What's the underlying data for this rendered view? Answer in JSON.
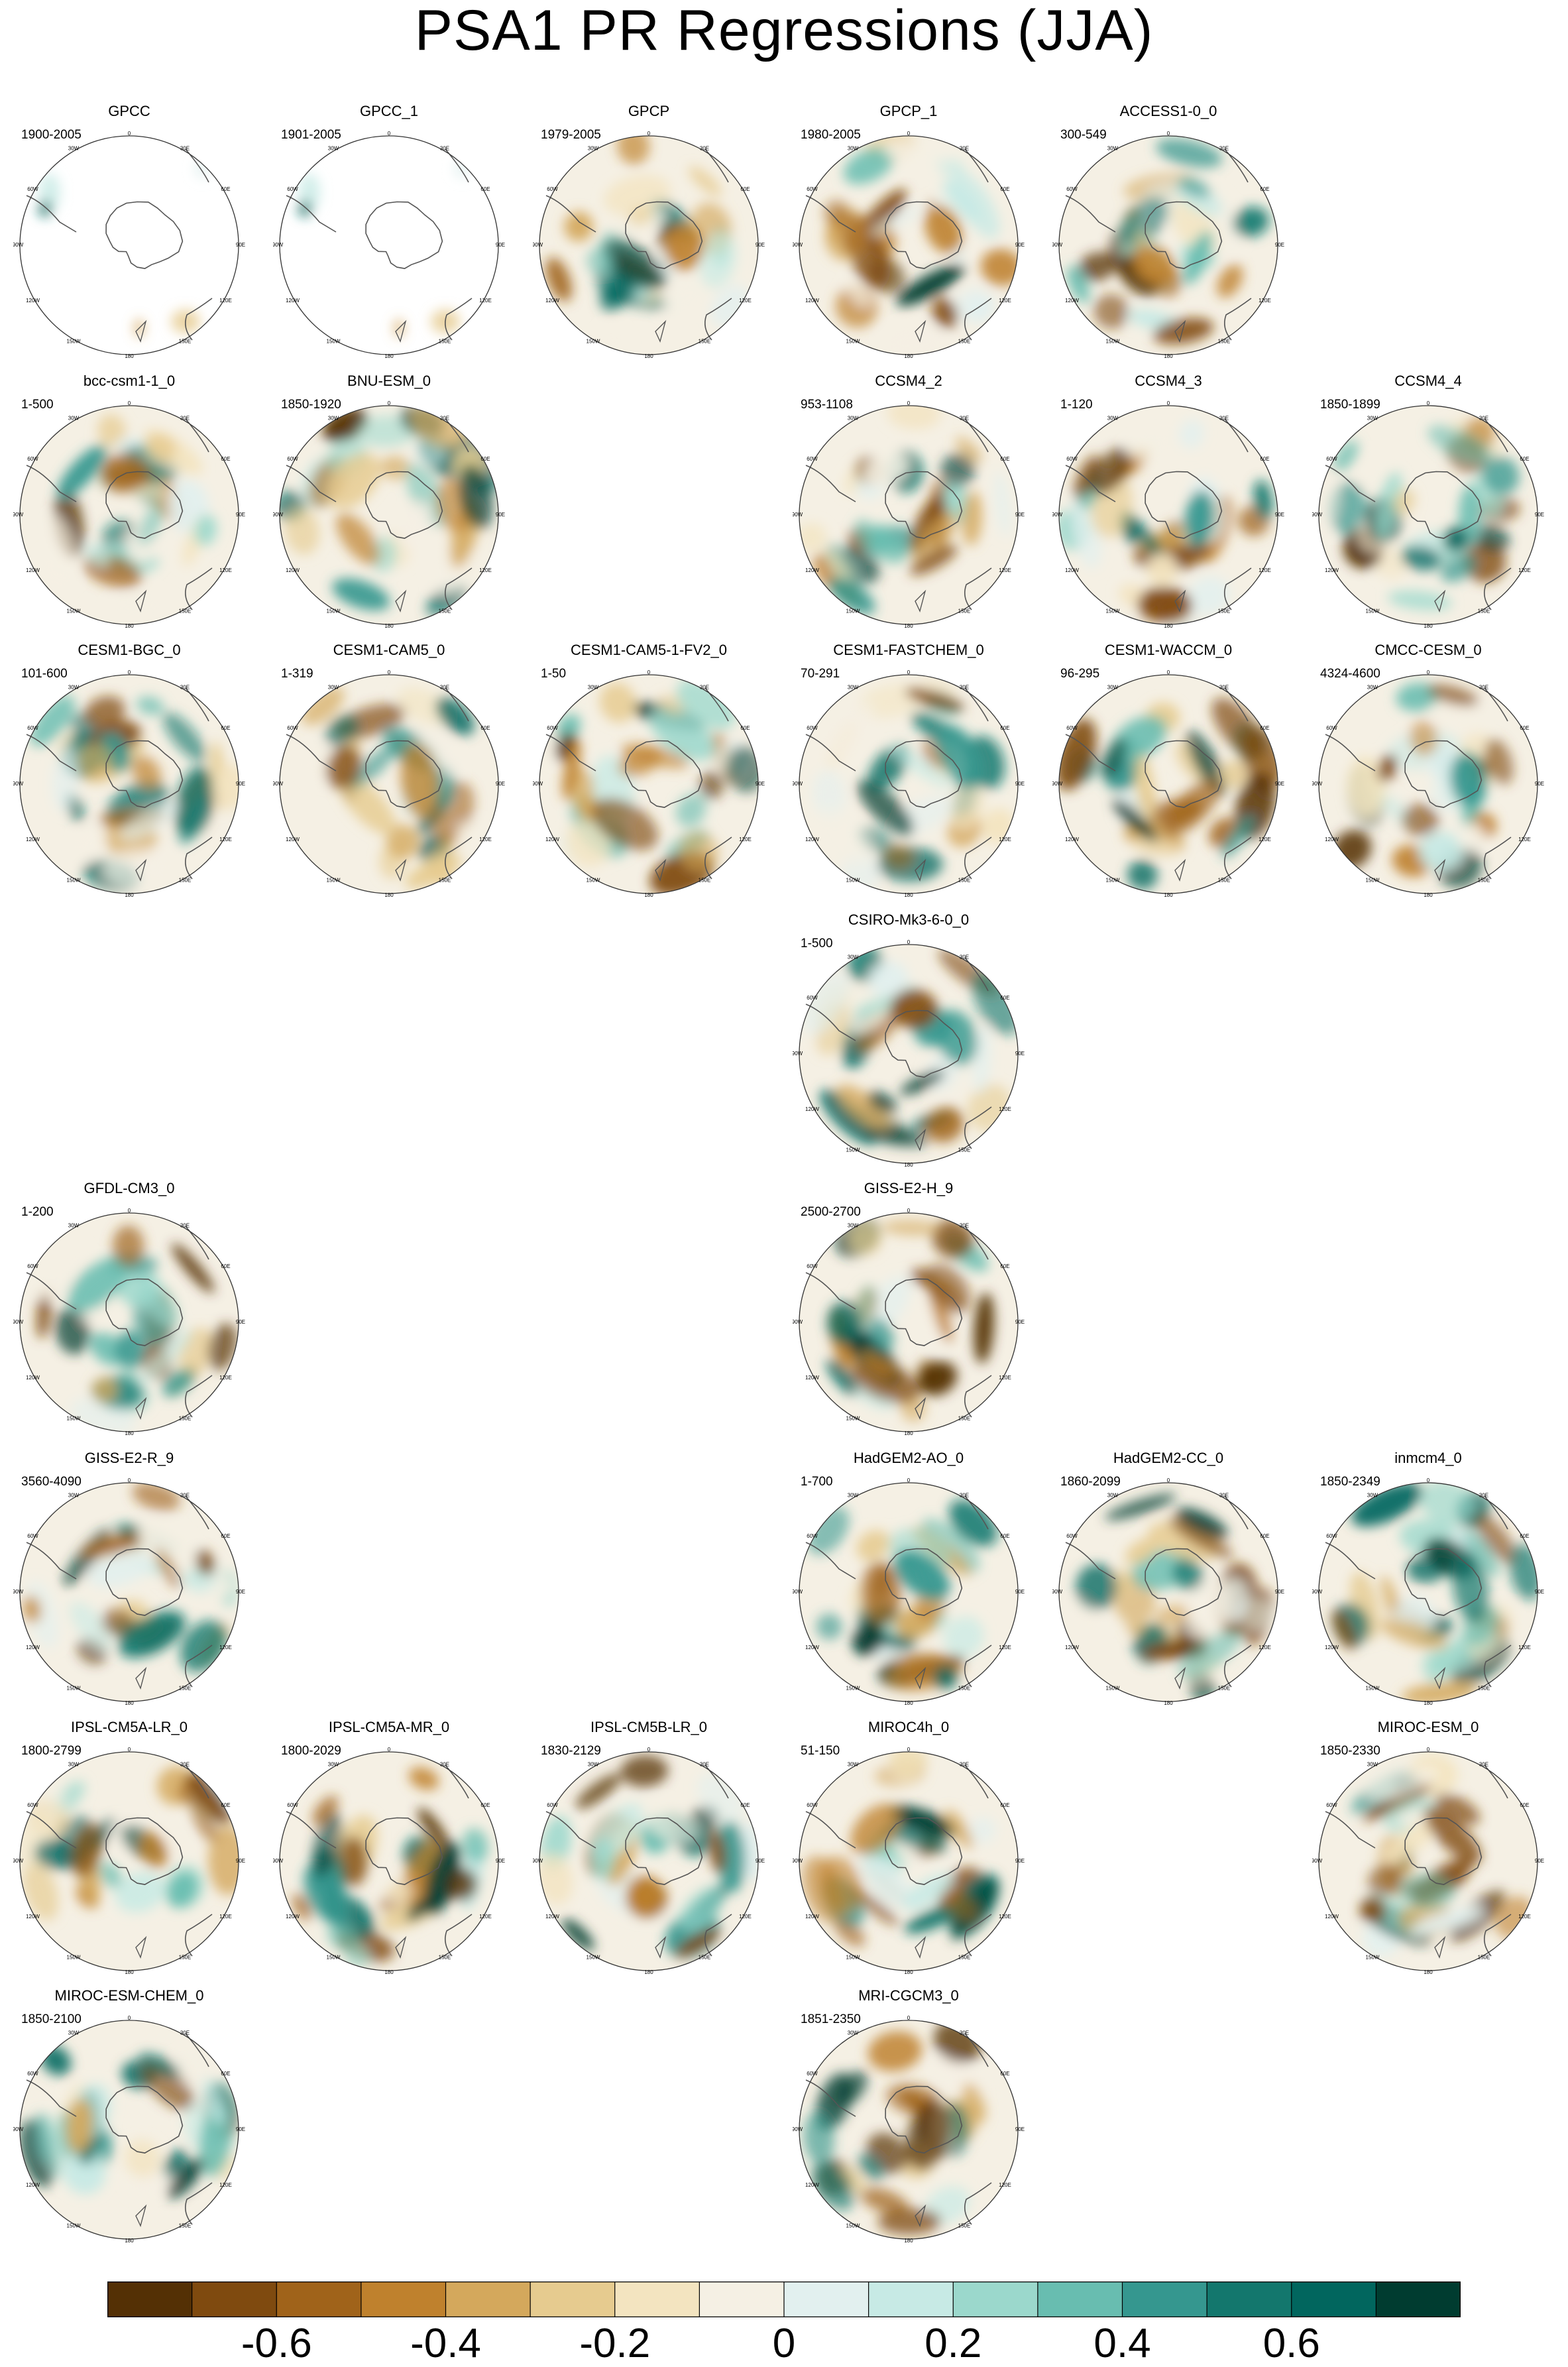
{
  "title": "PSA1 PR Regressions (JJA)",
  "lon_labels": [
    "0",
    "30E",
    "60E",
    "90E",
    "120E",
    "150E",
    "180",
    "150W",
    "120W",
    "90W",
    "60W",
    "30W"
  ],
  "colorbar": {
    "colors": [
      "#543005",
      "#7f4a0f",
      "#a0631a",
      "#bf812d",
      "#d4a85c",
      "#e6cb8f",
      "#f3e4c0",
      "#f5f0e4",
      "#e2f0ef",
      "#c7eae5",
      "#9bd8cc",
      "#68bdb0",
      "#35978f",
      "#13776d",
      "#01665e",
      "#003c30"
    ],
    "tick_labels": [
      "-0.6",
      "-0.4",
      "-0.2",
      "0",
      "0.2",
      "0.4",
      "0.6"
    ]
  },
  "panels": [
    {
      "name": "GPCC",
      "years": "1900-2005",
      "row": 0,
      "col": 0,
      "fill": "partial"
    },
    {
      "name": "GPCC_1",
      "years": "1901-2005",
      "row": 0,
      "col": 1,
      "fill": "partial"
    },
    {
      "name": "GPCP",
      "years": "1979-2005",
      "row": 0,
      "col": 2,
      "fill": "full"
    },
    {
      "name": "GPCP_1",
      "years": "1980-2005",
      "row": 0,
      "col": 3,
      "fill": "full"
    },
    {
      "name": "ACCESS1-0_0",
      "years": "300-549",
      "row": 0,
      "col": 4,
      "fill": "full"
    },
    {
      "name": "bcc-csm1-1_0",
      "years": "1-500",
      "row": 1,
      "col": 0,
      "fill": "full"
    },
    {
      "name": "BNU-ESM_0",
      "years": "1850-1920",
      "row": 1,
      "col": 1,
      "fill": "full"
    },
    {
      "name": "CCSM4_2",
      "years": "953-1108",
      "row": 1,
      "col": 3,
      "fill": "full"
    },
    {
      "name": "CCSM4_3",
      "years": "1-120",
      "row": 1,
      "col": 4,
      "fill": "full"
    },
    {
      "name": "CCSM4_4",
      "years": "1850-1899",
      "row": 1,
      "col": 5,
      "fill": "full"
    },
    {
      "name": "CESM1-BGC_0",
      "years": "101-600",
      "row": 2,
      "col": 0,
      "fill": "full"
    },
    {
      "name": "CESM1-CAM5_0",
      "years": "1-319",
      "row": 2,
      "col": 1,
      "fill": "full"
    },
    {
      "name": "CESM1-CAM5-1-FV2_0",
      "years": "1-50",
      "row": 2,
      "col": 2,
      "fill": "full"
    },
    {
      "name": "CESM1-FASTCHEM_0",
      "years": "70-291",
      "row": 2,
      "col": 3,
      "fill": "full"
    },
    {
      "name": "CESM1-WACCM_0",
      "years": "96-295",
      "row": 2,
      "col": 4,
      "fill": "full"
    },
    {
      "name": "CMCC-CESM_0",
      "years": "4324-4600",
      "row": 2,
      "col": 5,
      "fill": "full"
    },
    {
      "name": "CSIRO-Mk3-6-0_0",
      "years": "1-500",
      "row": 3,
      "col": 3,
      "fill": "full"
    },
    {
      "name": "GFDL-CM3_0",
      "years": "1-200",
      "row": 4,
      "col": 0,
      "fill": "full"
    },
    {
      "name": "GISS-E2-H_9",
      "years": "2500-2700",
      "row": 4,
      "col": 3,
      "fill": "full"
    },
    {
      "name": "GISS-E2-R_9",
      "years": "3560-4090",
      "row": 5,
      "col": 0,
      "fill": "full"
    },
    {
      "name": "HadGEM2-AO_0",
      "years": "1-700",
      "row": 5,
      "col": 3,
      "fill": "full"
    },
    {
      "name": "HadGEM2-CC_0",
      "years": "1860-2099",
      "row": 5,
      "col": 4,
      "fill": "full"
    },
    {
      "name": "inmcm4_0",
      "years": "1850-2349",
      "row": 5,
      "col": 5,
      "fill": "full"
    },
    {
      "name": "IPSL-CM5A-LR_0",
      "years": "1800-2799",
      "row": 6,
      "col": 0,
      "fill": "full"
    },
    {
      "name": "IPSL-CM5A-MR_0",
      "years": "1800-2029",
      "row": 6,
      "col": 1,
      "fill": "full"
    },
    {
      "name": "IPSL-CM5B-LR_0",
      "years": "1830-2129",
      "row": 6,
      "col": 2,
      "fill": "full"
    },
    {
      "name": "MIROC4h_0",
      "years": "51-150",
      "row": 6,
      "col": 3,
      "fill": "full"
    },
    {
      "name": "MIROC-ESM_0",
      "years": "1850-2330",
      "row": 6,
      "col": 5,
      "fill": "full"
    },
    {
      "name": "MIROC-ESM-CHEM_0",
      "years": "1850-2100",
      "row": 7,
      "col": 0,
      "fill": "full"
    },
    {
      "name": "MRI-CGCM3_0",
      "years": "1851-2350",
      "row": 7,
      "col": 3,
      "fill": "full"
    }
  ]
}
